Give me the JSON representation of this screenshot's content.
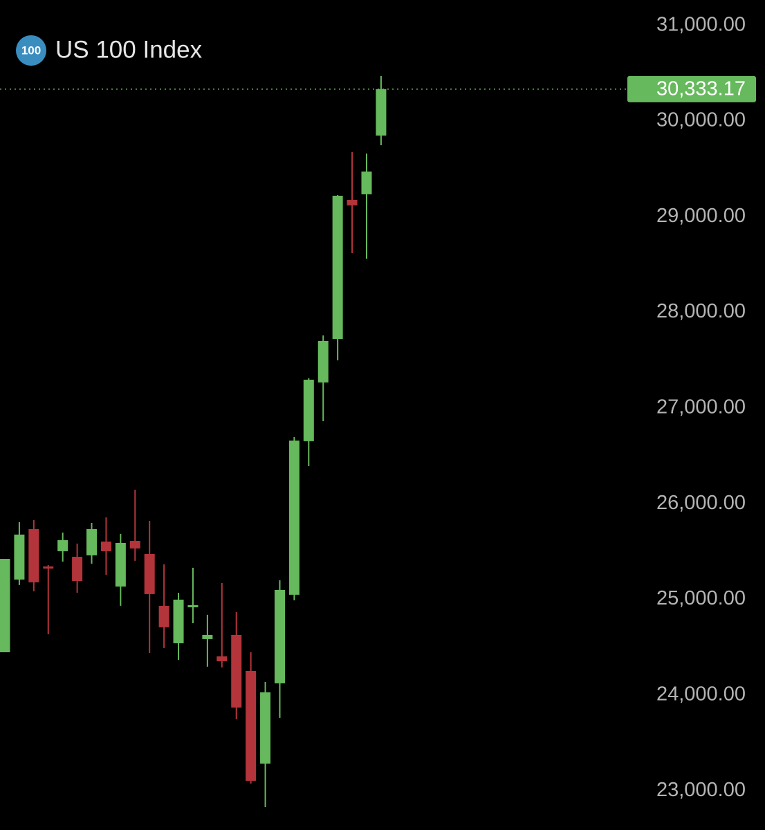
{
  "chart_data": {
    "type": "candlestick",
    "title": "US 100 Index",
    "icon_label": "100",
    "up_color": "#66b95c",
    "down_color": "#b3343a",
    "open": [
      24447,
      25207,
      25734,
      25344,
      25503,
      25445,
      25460,
      25604,
      25134,
      25611,
      25474,
      24932,
      24541,
      24917,
      24585,
      24404,
      24628,
      24252,
      23283,
      24122,
      25048,
      26653,
      27267,
      27722,
      29176,
      29234,
      29848
    ],
    "high": [
      25423,
      25807,
      25828,
      25358,
      25698,
      25583,
      25799,
      25857,
      25684,
      26146,
      25821,
      25366,
      25069,
      25330,
      24838,
      25170,
      24867,
      24447,
      24137,
      25199,
      26696,
      27310,
      27759,
      29226,
      29675,
      29660,
      30470
    ],
    "low": [
      24447,
      25149,
      25084,
      24635,
      25395,
      25069,
      25373,
      25257,
      24932,
      25402,
      24440,
      24491,
      24368,
      24751,
      24296,
      24288,
      23746,
      23074,
      22828,
      23761,
      24990,
      26392,
      26862,
      27498,
      28619,
      28561,
      29747
    ],
    "close": [
      25423,
      25677,
      25178,
      25322,
      25619,
      25192,
      25734,
      25503,
      25590,
      25532,
      25055,
      24708,
      24997,
      24939,
      24628,
      24353,
      23869,
      23103,
      24028,
      25098,
      26660,
      27296,
      27701,
      29219,
      29118,
      29472,
      30333.17
    ],
    "ylim": [
      22589,
      31265
    ],
    "yticks": [
      {
        "value": 31000,
        "label": "31,000.00"
      },
      {
        "value": 30000,
        "label": "30,000.00"
      },
      {
        "value": 29000,
        "label": "29,000.00"
      },
      {
        "value": 28000,
        "label": "28,000.00"
      },
      {
        "value": 27000,
        "label": "27,000.00"
      },
      {
        "value": 26000,
        "label": "26,000.00"
      },
      {
        "value": 25000,
        "label": "25,000.00"
      },
      {
        "value": 24000,
        "label": "24,000.00"
      },
      {
        "value": 23000,
        "label": "23,000.00"
      }
    ],
    "last_price": {
      "value": 30333.17,
      "label": "30,333.17"
    }
  }
}
